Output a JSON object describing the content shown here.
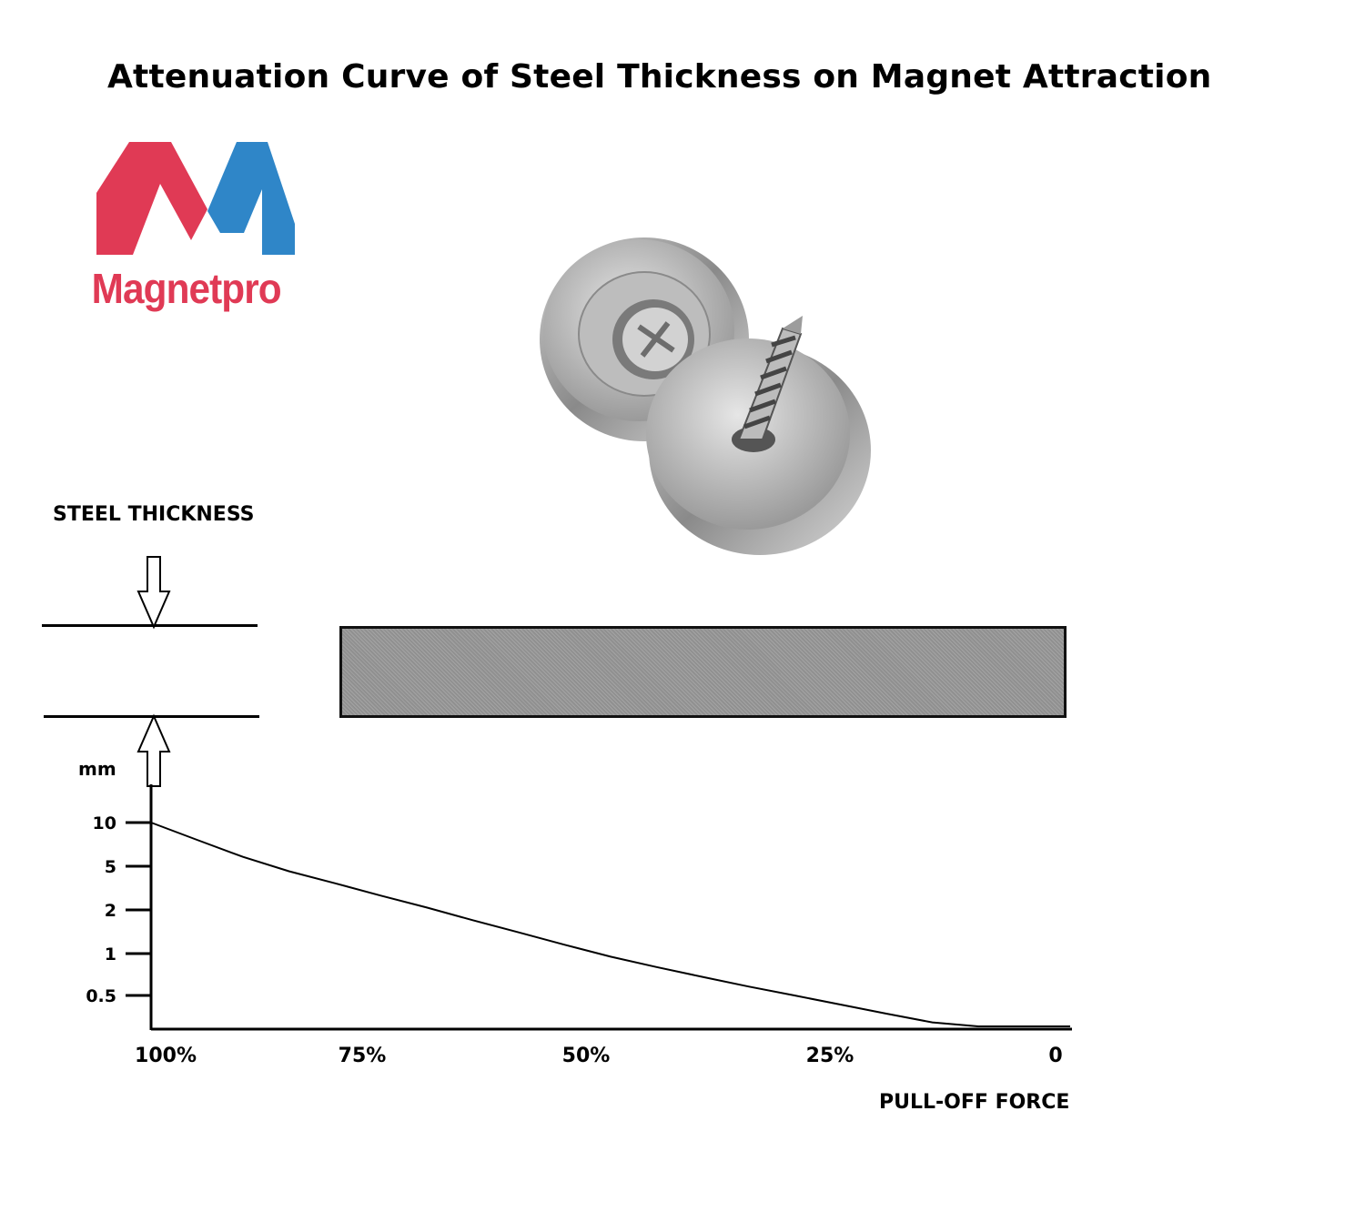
{
  "title": "Attenuation Curve of Steel Thickness on Magnet Attraction",
  "logo": {
    "text": "Magnetpro",
    "colors": {
      "red": "#e03a55",
      "blue": "#2f86c8"
    }
  },
  "product": {
    "icon": "countersunk-screw-magnet"
  },
  "steel_thickness_label": "STEEL THICKNESS",
  "chart_data": {
    "type": "line",
    "title": "Attenuation Curve of Steel Thickness on Magnet Attraction",
    "xlabel": "PULL-OFF FORCE",
    "ylabel": "mm",
    "x_ticks": [
      "100%",
      "75%",
      "50%",
      "25%",
      "0"
    ],
    "y_ticks": [
      "10",
      "5",
      "2",
      "1",
      "0.5"
    ],
    "series": [
      {
        "name": "attenuation",
        "x": [
          100,
          95,
          90,
          85,
          80,
          75,
          70,
          65,
          60,
          55,
          50,
          45,
          40,
          35,
          30,
          25,
          20,
          15,
          10,
          5,
          0
        ],
        "y": [
          10,
          7.6,
          5.8,
          4.5,
          3.5,
          2.7,
          2.1,
          1.7,
          1.4,
          1.15,
          0.95,
          0.8,
          0.68,
          0.58,
          0.5,
          0.43,
          0.37,
          0.32,
          0.28,
          0.25,
          0.22
        ]
      }
    ],
    "xlim": [
      100,
      0
    ],
    "grid": false,
    "legend": "none"
  }
}
